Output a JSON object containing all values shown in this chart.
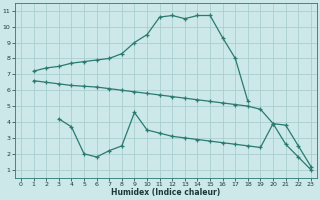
{
  "xlabel": "Humidex (Indice chaleur)",
  "bg_color": "#cce8e8",
  "grid_color": "#aacece",
  "line_color": "#2a7a70",
  "line1_x": [
    1,
    2,
    3,
    4,
    5,
    6,
    7,
    8,
    9,
    10,
    11,
    12,
    13,
    14,
    15,
    16,
    17,
    18
  ],
  "line1_y": [
    7.2,
    7.4,
    7.5,
    7.7,
    7.8,
    7.9,
    8.0,
    8.3,
    9.0,
    9.5,
    10.6,
    10.7,
    10.5,
    10.7,
    10.7,
    9.3,
    8.0,
    5.3
  ],
  "line2_x": [
    1,
    2,
    3,
    4,
    5,
    6,
    7,
    8,
    9,
    10,
    11,
    12,
    13,
    14,
    15,
    16,
    17,
    18,
    19,
    20,
    21,
    22,
    23
  ],
  "line2_y": [
    6.6,
    6.5,
    6.4,
    6.3,
    6.25,
    6.2,
    6.1,
    6.0,
    5.9,
    5.8,
    5.7,
    5.6,
    5.5,
    5.4,
    5.3,
    5.2,
    5.1,
    5.0,
    4.8,
    3.9,
    3.8,
    2.5,
    1.2
  ],
  "line3_x": [
    3,
    4,
    5,
    6,
    7,
    8,
    9,
    10,
    11,
    12,
    13,
    14,
    15,
    16,
    17,
    18,
    19,
    20,
    21,
    22,
    23
  ],
  "line3_y": [
    4.2,
    3.7,
    2.0,
    1.8,
    2.2,
    2.5,
    4.6,
    3.5,
    3.3,
    3.1,
    3.0,
    2.9,
    2.8,
    2.7,
    2.6,
    2.5,
    2.4,
    3.9,
    2.6,
    1.8,
    1.0
  ],
  "xlim": [
    -0.5,
    23.5
  ],
  "ylim": [
    0.5,
    11.5
  ],
  "xticks": [
    0,
    1,
    2,
    3,
    4,
    5,
    6,
    7,
    8,
    9,
    10,
    11,
    12,
    13,
    14,
    15,
    16,
    17,
    18,
    19,
    20,
    21,
    22,
    23
  ],
  "yticks": [
    1,
    2,
    3,
    4,
    5,
    6,
    7,
    8,
    9,
    10,
    11
  ]
}
